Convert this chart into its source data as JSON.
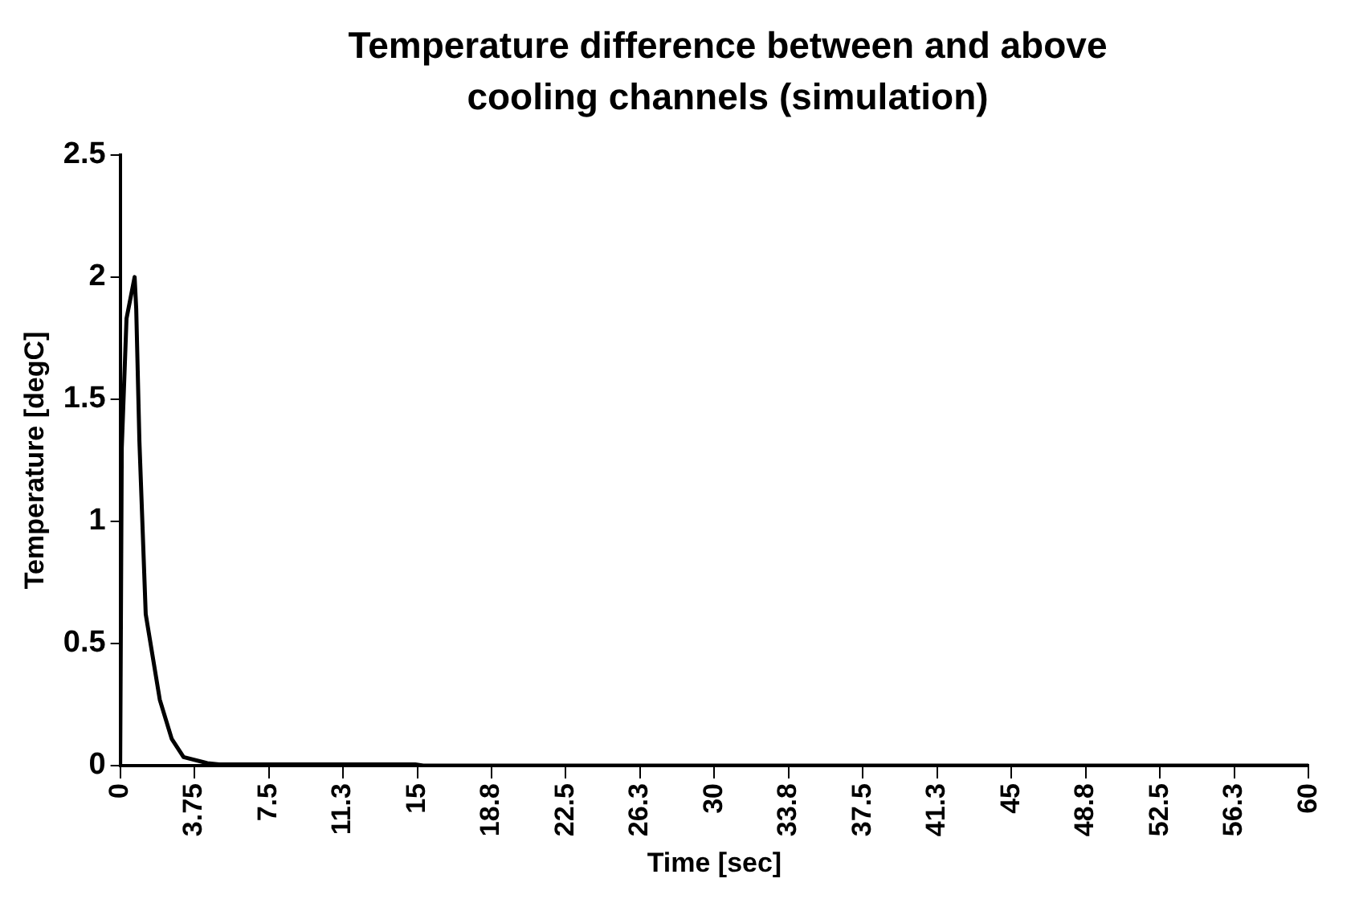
{
  "chart_data": {
    "type": "line",
    "title": "Temperature difference between and above cooling channels (simulation)",
    "xlabel": "Time [sec]",
    "ylabel": "Temperature [degC]",
    "x": [
      0,
      0.08,
      0.32,
      0.73,
      0.81,
      0.97,
      1.29,
      2.0,
      2.6,
      3.2,
      4.4,
      5,
      10,
      14.9,
      15.3,
      60
    ],
    "series": [
      {
        "color": "#000000",
        "values": [
          0,
          1.3,
          1.83,
          2.0,
          1.87,
          1.33,
          0.62,
          0.27,
          0.11,
          0.035,
          0.01,
          0.005,
          0.005,
          0.005,
          0,
          0
        ]
      }
    ],
    "xlim": [
      0,
      60
    ],
    "xticks": [
      0,
      3.75,
      7.5,
      {
        "value": 11.25,
        "label": "11.3"
      },
      15,
      {
        "value": 18.75,
        "label": "18.8"
      },
      22.5,
      {
        "value": 26.25,
        "label": "26.3"
      },
      30,
      {
        "value": 33.75,
        "label": "33.8"
      },
      37.5,
      {
        "value": 41.25,
        "label": "41.3"
      },
      45,
      {
        "value": 48.75,
        "label": "48.8"
      },
      52.5,
      {
        "value": 56.25,
        "label": "56.3"
      },
      60
    ],
    "ylim": [
      0,
      2.5
    ],
    "yticks": [
      0,
      0.5,
      1,
      1.5,
      2,
      2.5
    ],
    "grid": false,
    "legend": false,
    "marker": "none",
    "line_style": "solid"
  }
}
